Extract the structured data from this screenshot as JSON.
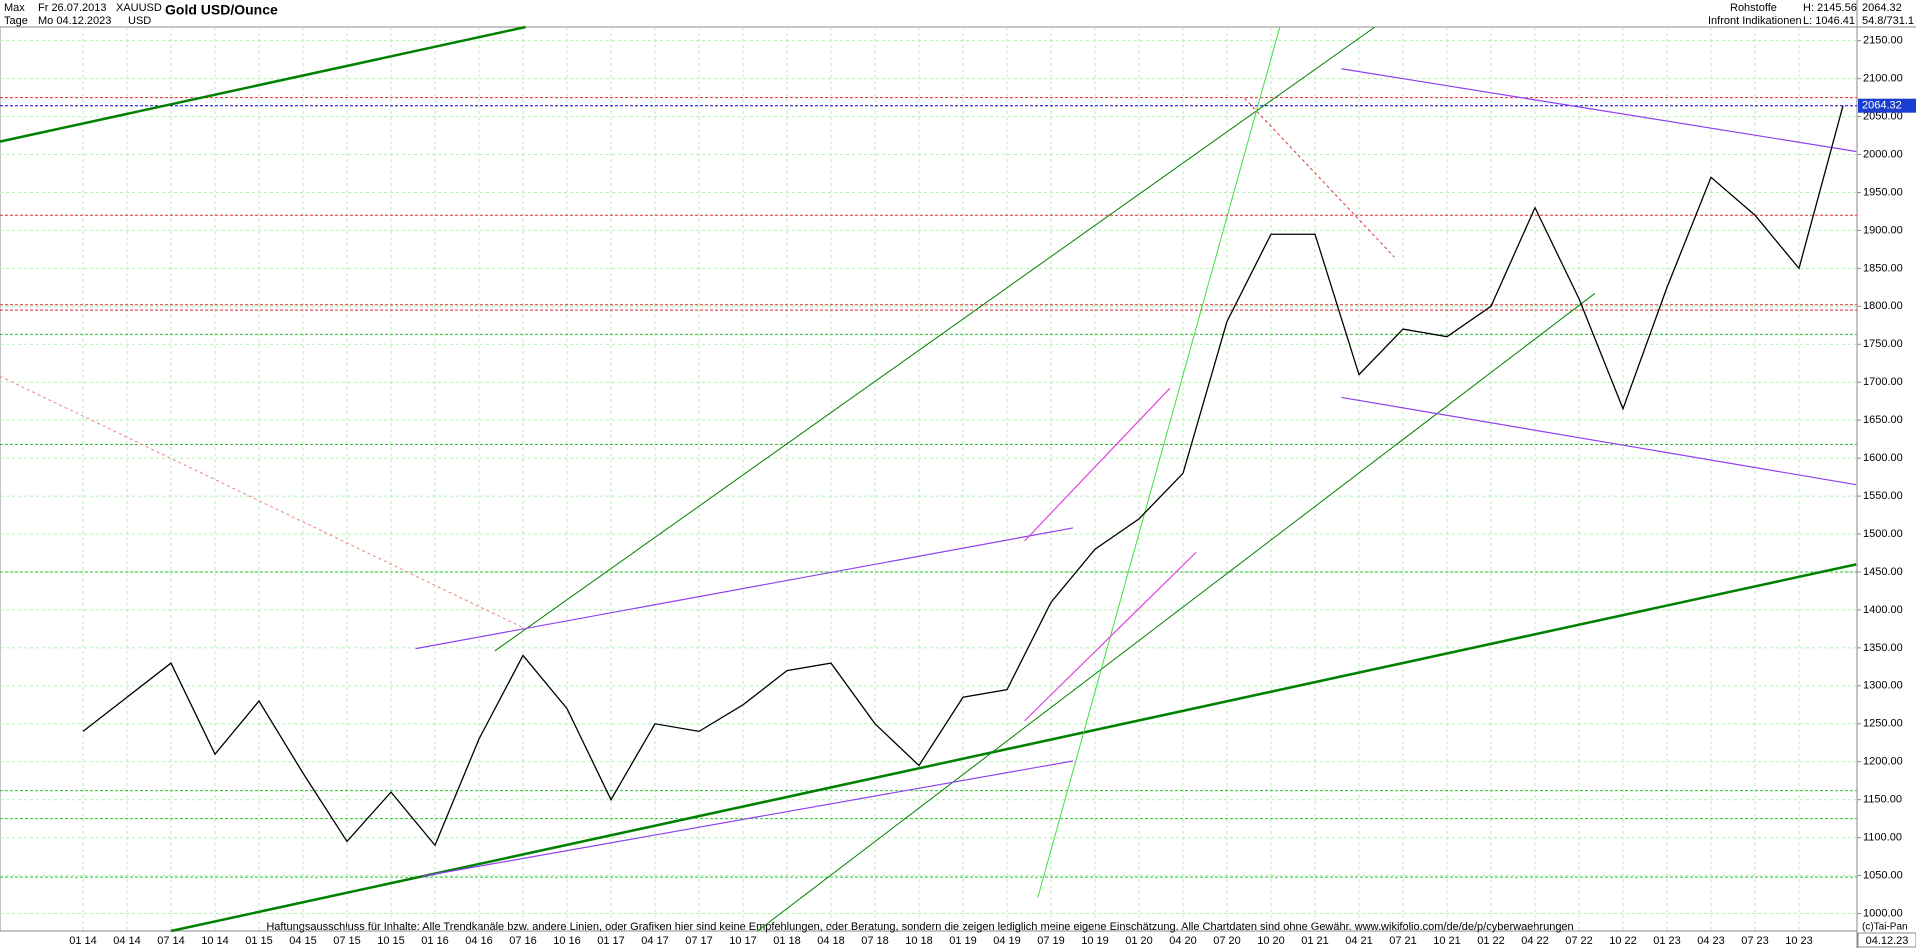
{
  "chart_data": {
    "type": "line",
    "title": "Gold USD/Ounce",
    "header": {
      "range": "Max",
      "from": "Fr 26.07.2013",
      "symbol": "XAUUSD",
      "period": "Tage",
      "to": "Mo 04.12.2023",
      "currency": "USD",
      "group": "Rohstoffe",
      "source": "Infront Indikationen",
      "high": "H: 2145.56",
      "low": "L: 1046.41",
      "last": "2064.32",
      "scale": "54.8/731.1"
    },
    "footer": "Haftungsausschluss für Inhalte: Alle Trendkanäle bzw. andere Linien, oder Grafiken hier sind keine Empfehlungen, oder Beratung, sondern die zeigen lediglich meine eigene Einschätzung. Alle Chartdaten sind ohne Gewähr.  www.wikifolio.com/de/de/p/cyberwaehrungen",
    "copyright": "(c)Tai-Pan",
    "categories": [
      "01 14",
      "04 14",
      "07 14",
      "10 14",
      "01 15",
      "04 15",
      "07 15",
      "10 15",
      "01 16",
      "04 16",
      "07 16",
      "10 16",
      "01 17",
      "04 17",
      "07 17",
      "10 17",
      "01 18",
      "04 18",
      "07 18",
      "10 18",
      "01 19",
      "04 19",
      "07 19",
      "10 19",
      "01 20",
      "04 20",
      "07 20",
      "10 20",
      "01 21",
      "04 21",
      "07 21",
      "10 21",
      "01 22",
      "04 22",
      "07 22",
      "10 22",
      "01 23",
      "04 23",
      "07 23",
      "10 23",
      "04.12.23"
    ],
    "values": [
      1240,
      1285,
      1330,
      1210,
      1280,
      1185,
      1095,
      1160,
      1090,
      1230,
      1340,
      1270,
      1150,
      1250,
      1240,
      1275,
      1320,
      1330,
      1250,
      1195,
      1285,
      1295,
      1410,
      1480,
      1520,
      1580,
      1780,
      1895,
      1895,
      1710,
      1770,
      1760,
      1800,
      1930,
      1810,
      1665,
      1825,
      1970,
      1920,
      1850,
      2064.32
    ],
    "value_labels": {
      "40": "2064.32"
    },
    "color": "#000000",
    "ylim": [
      977,
      2168
    ],
    "yticks": [
      {
        "value": 1000,
        "label": "1000.00"
      },
      {
        "value": 1050,
        "label": "1050.00"
      },
      {
        "value": 1100,
        "label": "1100.00"
      },
      {
        "value": 1150,
        "label": "1150.00"
      },
      {
        "value": 1200,
        "label": "1200.00"
      },
      {
        "value": 1250,
        "label": "1250.00"
      },
      {
        "value": 1300,
        "label": "1300.00"
      },
      {
        "value": 1350,
        "label": "1350.00"
      },
      {
        "value": 1400,
        "label": "1400.00"
      },
      {
        "value": 1450,
        "label": "1450.00"
      },
      {
        "value": 1500,
        "label": "1500.00"
      },
      {
        "value": 1550,
        "label": "1550.00"
      },
      {
        "value": 1600,
        "label": "1600.00"
      },
      {
        "value": 1650,
        "label": "1650.00"
      },
      {
        "value": 1700,
        "label": "1700.00"
      },
      {
        "value": 1750,
        "label": "1750.00"
      },
      {
        "value": 1800,
        "label": "1800.00"
      },
      {
        "value": 1850,
        "label": "1850.00"
      },
      {
        "value": 1900,
        "label": "1900.00"
      },
      {
        "value": 1950,
        "label": "1950.00"
      },
      {
        "value": 2000,
        "label": "2000.00"
      },
      {
        "value": 2050,
        "label": "2050.00"
      },
      {
        "value": 2100,
        "label": "2100.00"
      },
      {
        "value": 2150,
        "label": "2150.00"
      }
    ],
    "grid": true,
    "levels": [
      {
        "value": 2064.32,
        "color": "#0000cc"
      },
      {
        "value": 2075,
        "color": "#e03030"
      },
      {
        "value": 1920,
        "color": "#e03030"
      },
      {
        "value": 1802,
        "color": "#e03030"
      },
      {
        "value": 1795,
        "color": "#e03030"
      },
      {
        "value": 1763,
        "color": "#30c030"
      },
      {
        "value": 1618,
        "color": "#30c030"
      },
      {
        "value": 1450,
        "color": "#30c030"
      },
      {
        "value": 1162,
        "color": "#30c030"
      },
      {
        "value": 1125,
        "color": "#30c030"
      },
      {
        "value": 1048,
        "color": "#30c030"
      }
    ],
    "trendlines": [
      {
        "x1": 2.0,
        "y1": 977,
        "x2": 40.3,
        "y2": 1460,
        "color": "#008000",
        "width": 2.5
      },
      {
        "x1": -1.89,
        "y1": 2017,
        "x2": 10.06,
        "y2": 2168,
        "color": "#008000",
        "width": 2.5
      },
      {
        "x1": 9.36,
        "y1": 1346,
        "x2": 29.36,
        "y2": 2168,
        "color": "#008000",
        "width": 1
      },
      {
        "x1": 15.33,
        "y1": 977,
        "x2": 34.36,
        "y2": 1817,
        "color": "#008000",
        "width": 1
      },
      {
        "x1": 21.7,
        "y1": 1021,
        "x2": 27.2,
        "y2": 2168,
        "color": "#40e040",
        "width": 1
      },
      {
        "x1": 7.56,
        "y1": 1349,
        "x2": 22.5,
        "y2": 1508,
        "color": "#9040f0",
        "width": 1.2
      },
      {
        "x1": 7.7,
        "y1": 1049,
        "x2": 22.5,
        "y2": 1201,
        "color": "#9040f0",
        "width": 1.2
      },
      {
        "x1": 28.6,
        "y1": 2113,
        "x2": 40.3,
        "y2": 2004,
        "color": "#9040f0",
        "width": 1.2
      },
      {
        "x1": 28.6,
        "y1": 1680,
        "x2": 40.3,
        "y2": 1565,
        "color": "#9040f0",
        "width": 1.2
      },
      {
        "x1": 21.4,
        "y1": 1491,
        "x2": 24.7,
        "y2": 1692,
        "color": "#e040e0",
        "width": 1.2
      },
      {
        "x1": 21.4,
        "y1": 1254,
        "x2": 25.3,
        "y2": 1476,
        "color": "#e040e0",
        "width": 1.2
      },
      {
        "x1": -1.89,
        "y1": 1708,
        "x2": 10.06,
        "y2": 1375,
        "color": "#f08080",
        "width": 1,
        "dash": true
      },
      {
        "x1": 26.4,
        "y1": 2074,
        "x2": 29.8,
        "y2": 1865,
        "color": "#e03030",
        "width": 1,
        "dash": true
      }
    ]
  }
}
